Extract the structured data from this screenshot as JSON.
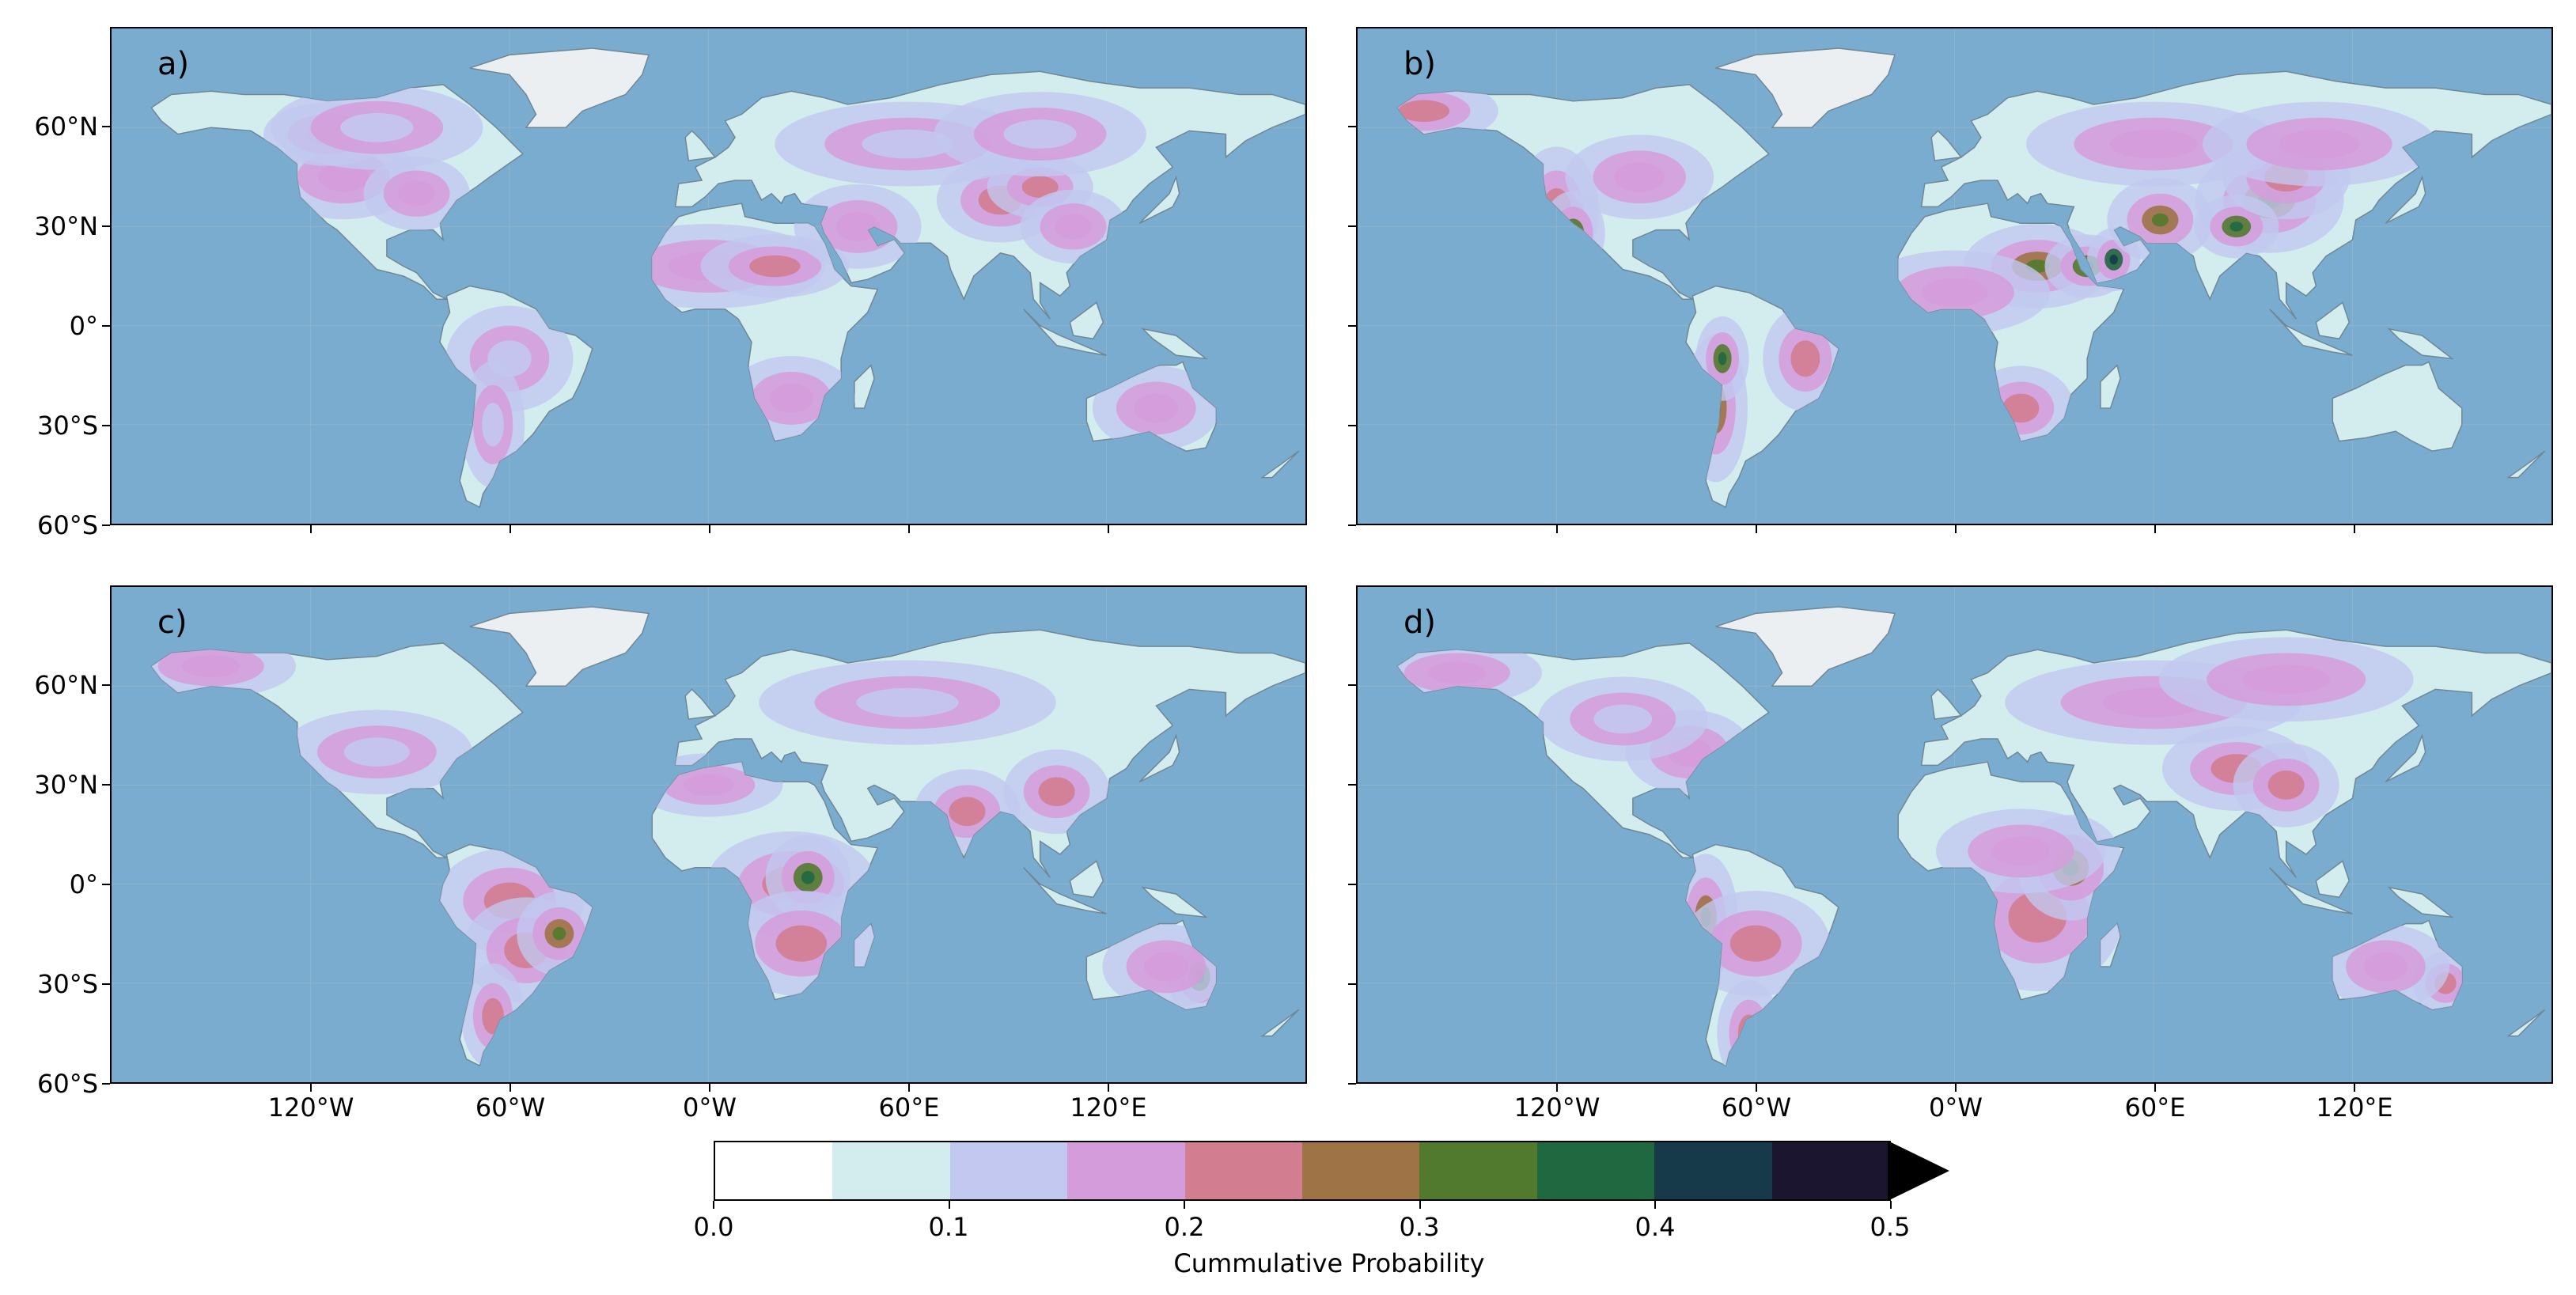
{
  "panels": [
    {
      "label": "a)"
    },
    {
      "label": "b)"
    },
    {
      "label": "c)"
    },
    {
      "label": "d)"
    }
  ],
  "axes": {
    "lat_ticks": [
      "60°N",
      "30°N",
      "0°",
      "30°S",
      "60°S"
    ],
    "lon_ticks": [
      "120°W",
      "60°W",
      "0°W",
      "60°E",
      "120°E"
    ]
  },
  "colorbar": {
    "title": "Cummulative Probability",
    "tick_labels": [
      "0.0",
      "0.1",
      "0.2",
      "0.3",
      "0.4",
      "0.5"
    ],
    "colors": [
      "#ffffff",
      "#d3edef",
      "#c2c8f0",
      "#d59cdb",
      "#d27d90",
      "#9e7346",
      "#527a2e",
      "#1f6840",
      "#163a4a",
      "#1c1530"
    ],
    "extend": "max"
  },
  "map_colors": {
    "ocean": "#7aaccf",
    "land_base": "#d3edef",
    "greenland": "#eceff2"
  }
}
